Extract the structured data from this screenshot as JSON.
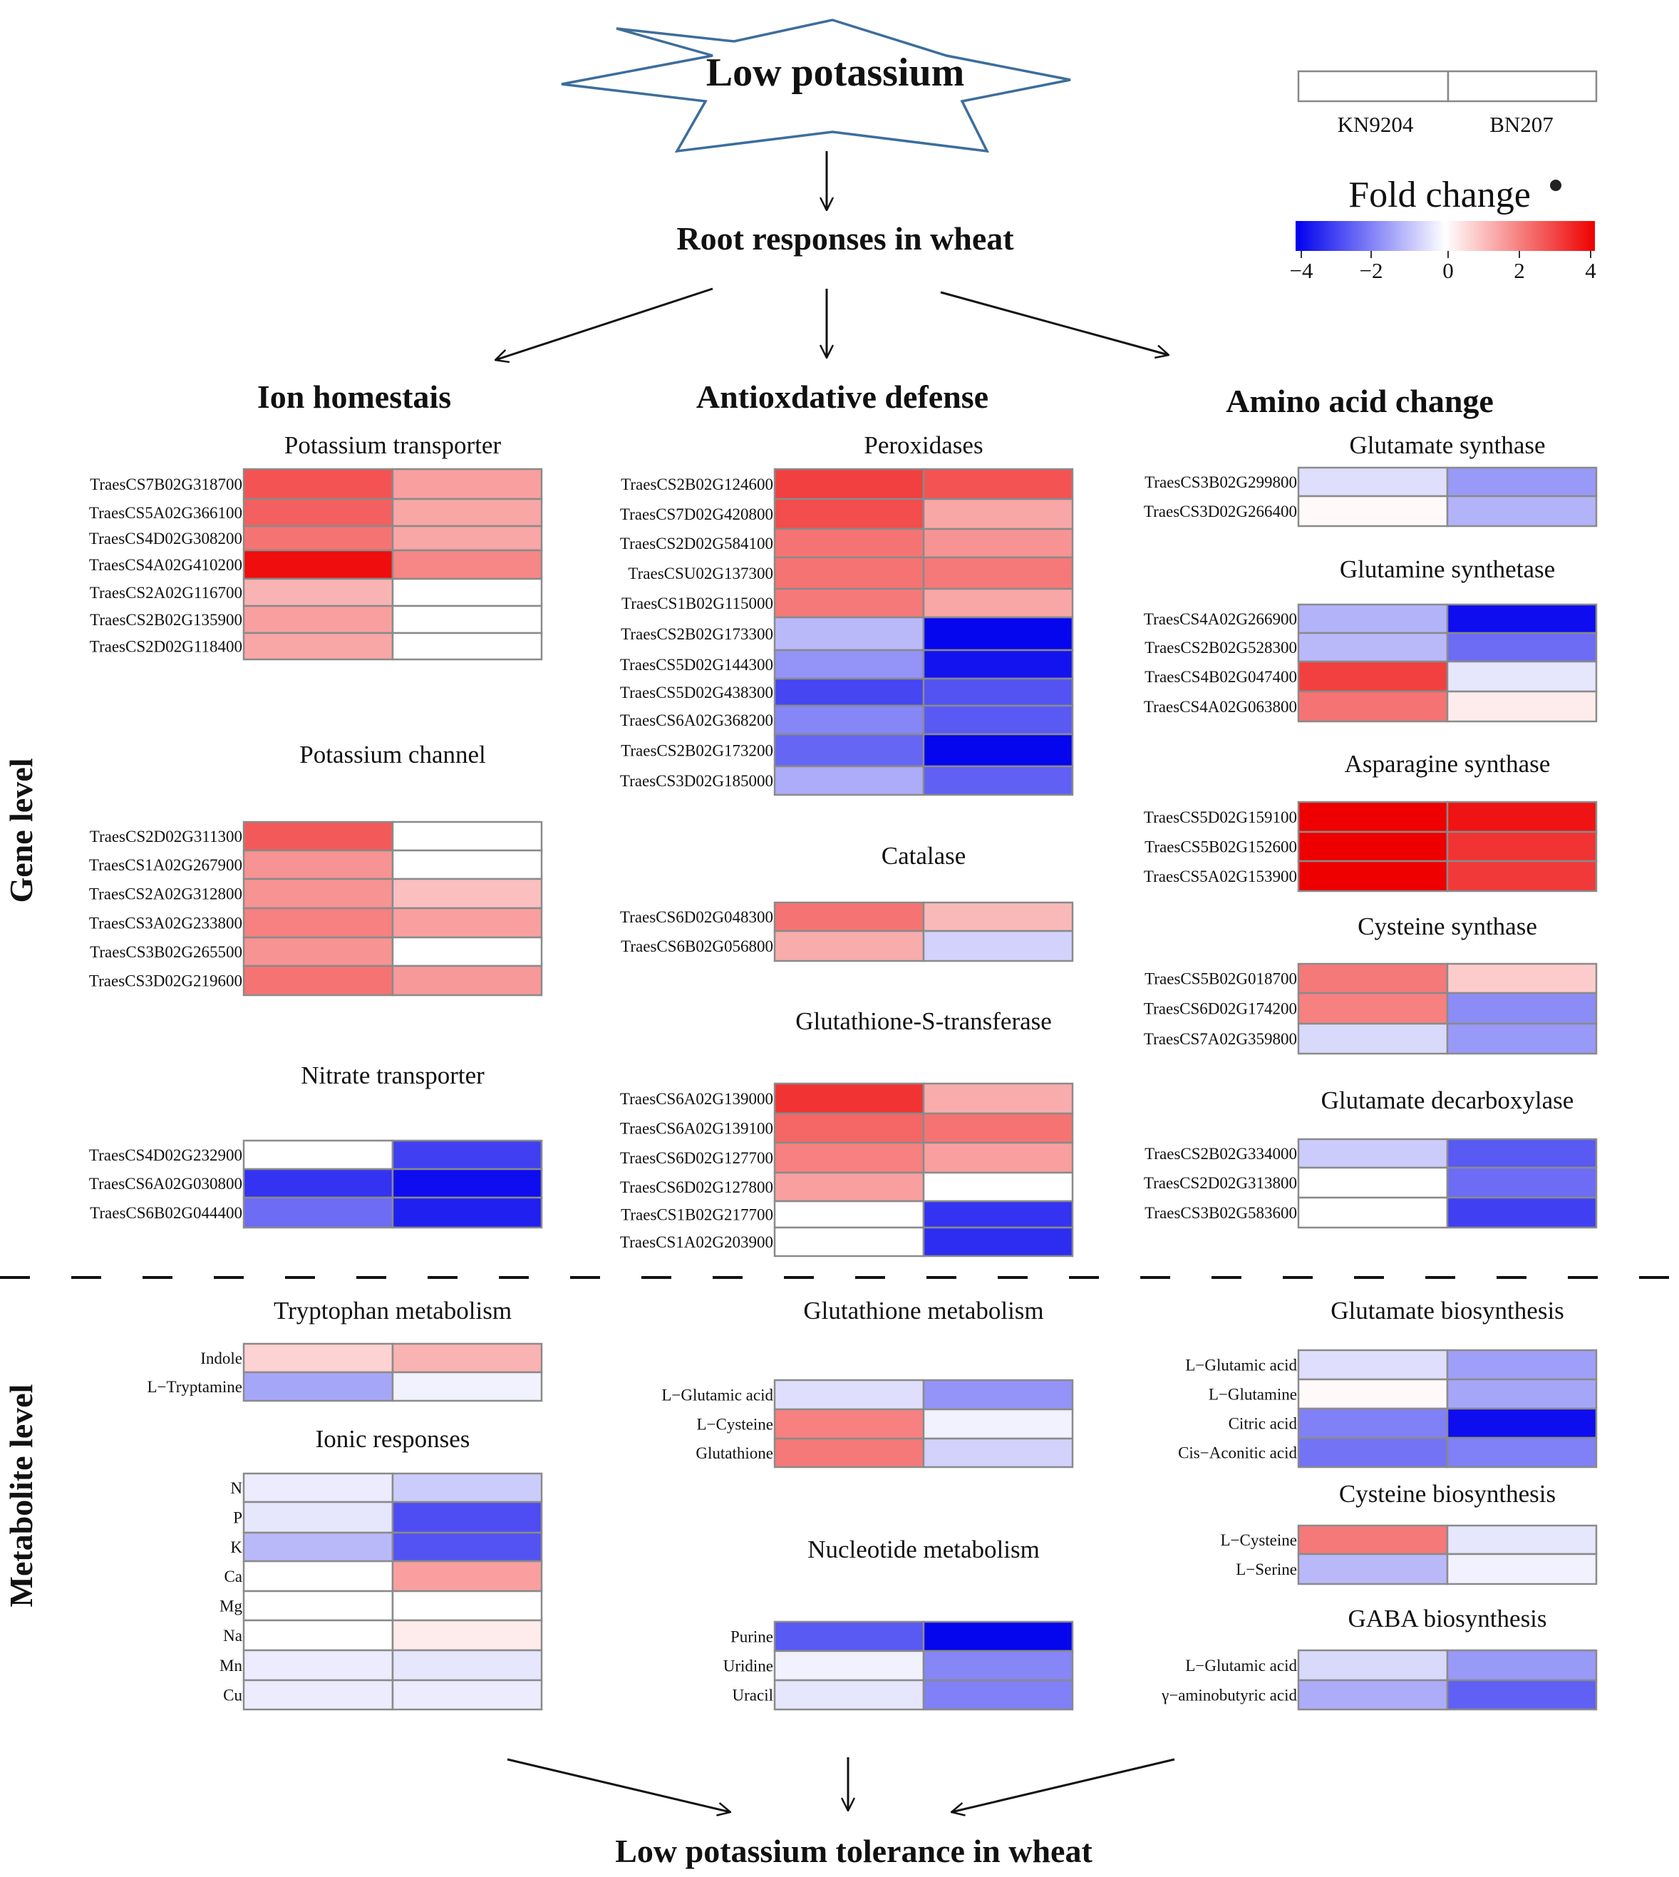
{
  "header": {
    "starburst_label": "Low potassium",
    "root_title": "Root responses in wheat",
    "bottom_title": "Low potassium tolerance in wheat"
  },
  "legend": {
    "col1": "KN9204",
    "col2": "BN207",
    "title": "Fold change",
    "ticks": [
      "−4",
      "−2",
      "0",
      "2",
      "4"
    ],
    "tick_values": [
      -4,
      -2,
      0,
      2,
      4
    ],
    "colors": {
      "low": "#0000ee",
      "mid": "#ffffff",
      "high": "#ee0000"
    }
  },
  "side_labels": {
    "gene": "Gene level",
    "metabolite": "Metabolite level"
  },
  "columns": {
    "ion": "Ion homestais",
    "antiox": "Antioxdative defense",
    "amino": "Amino acid change"
  },
  "panels": [
    {
      "id": "potassium-transporter",
      "title": "Potassium transporter",
      "rows": [
        {
          "label": "TraesCS7B02G318700",
          "values": [
            2.7,
            1.5
          ]
        },
        {
          "label": "TraesCS5A02G366100",
          "values": [
            2.5,
            1.4
          ]
        },
        {
          "label": "TraesCS4D02G308200",
          "values": [
            2.2,
            1.4
          ]
        },
        {
          "label": "TraesCS4A02G410200",
          "values": [
            3.8,
            1.9
          ]
        },
        {
          "label": "TraesCS2A02G116700",
          "values": [
            1.2,
            0.0
          ]
        },
        {
          "label": "TraesCS2B02G135900",
          "values": [
            1.5,
            0.0
          ]
        },
        {
          "label": "TraesCS2D02G118400",
          "values": [
            1.4,
            0.0
          ]
        }
      ]
    },
    {
      "id": "potassium-channel",
      "title": "Potassium channel",
      "rows": [
        {
          "label": "TraesCS2D02G311300",
          "values": [
            2.6,
            0.0
          ]
        },
        {
          "label": "TraesCS1A02G267900",
          "values": [
            1.7,
            0.0
          ]
        },
        {
          "label": "TraesCS2A02G312800",
          "values": [
            1.7,
            1.0
          ]
        },
        {
          "label": "TraesCS3A02G233800",
          "values": [
            2.0,
            1.5
          ]
        },
        {
          "label": "TraesCS3B02G265500",
          "values": [
            1.7,
            0.0
          ]
        },
        {
          "label": "TraesCS3D02G219600",
          "values": [
            2.2,
            1.6
          ]
        }
      ]
    },
    {
      "id": "nitrate-transporter",
      "title": "Nitrate transporter",
      "rows": [
        {
          "label": "TraesCS4D02G232900",
          "values": [
            0.0,
            -3.0
          ]
        },
        {
          "label": "TraesCS6A02G030800",
          "values": [
            -3.2,
            -3.8
          ]
        },
        {
          "label": "TraesCS6B02G044400",
          "values": [
            -2.3,
            -3.5
          ]
        }
      ]
    },
    {
      "id": "peroxidases",
      "title": "Peroxidases",
      "rows": [
        {
          "label": "TraesCS2B02G124600",
          "values": [
            3.0,
            2.7
          ]
        },
        {
          "label": "TraesCS7D02G420800",
          "values": [
            2.8,
            1.4
          ]
        },
        {
          "label": "TraesCS2D02G584100",
          "values": [
            2.2,
            1.7
          ]
        },
        {
          "label": "TraesCSU02G137300",
          "values": [
            2.2,
            2.1
          ]
        },
        {
          "label": "TraesCS1B02G115000",
          "values": [
            2.1,
            1.4
          ]
        },
        {
          "label": "TraesCS2B02G173300",
          "values": [
            -1.1,
            -3.9
          ]
        },
        {
          "label": "TraesCS5D02G144300",
          "values": [
            -1.7,
            -3.7
          ]
        },
        {
          "label": "TraesCS5D02G438300",
          "values": [
            -2.9,
            -2.7
          ]
        },
        {
          "label": "TraesCS6A02G368200",
          "values": [
            -1.9,
            -2.6
          ]
        },
        {
          "label": "TraesCS2B02G173200",
          "values": [
            -2.4,
            -3.9
          ]
        },
        {
          "label": "TraesCS3D02G185000",
          "values": [
            -1.3,
            -2.5
          ]
        }
      ]
    },
    {
      "id": "catalase",
      "title": "Catalase",
      "rows": [
        {
          "label": "TraesCS6D02G048300",
          "values": [
            2.2,
            1.1
          ]
        },
        {
          "label": "TraesCS6B02G056800",
          "values": [
            1.3,
            -0.7
          ]
        }
      ]
    },
    {
      "id": "glutathione-s-transferase",
      "title": "Glutathione-S-transferase",
      "rows": [
        {
          "label": "TraesCS6A02G139000",
          "values": [
            3.2,
            1.3
          ]
        },
        {
          "label": "TraesCS6A02G139100",
          "values": [
            2.4,
            2.2
          ]
        },
        {
          "label": "TraesCS6D02G127700",
          "values": [
            2.0,
            1.5
          ]
        },
        {
          "label": "TraesCS6D02G127800",
          "values": [
            1.5,
            0.0
          ]
        },
        {
          "label": "TraesCS1B02G217700",
          "values": [
            0.0,
            -3.2
          ]
        },
        {
          "label": "TraesCS1A02G203900",
          "values": [
            0.0,
            -3.3
          ]
        }
      ]
    },
    {
      "id": "glutamate-synthase",
      "title": "Glutamate synthase",
      "rows": [
        {
          "label": "TraesCS3B02G299800",
          "values": [
            -0.5,
            -1.6
          ]
        },
        {
          "label": "TraesCS3D02G266400",
          "values": [
            0.1,
            -1.2
          ]
        }
      ]
    },
    {
      "id": "glutamine-synthetase",
      "title": "Glutamine synthetase",
      "rows": [
        {
          "label": "TraesCS4A02G266900",
          "values": [
            -1.2,
            -3.8
          ]
        },
        {
          "label": "TraesCS2B02G528300",
          "values": [
            -1.1,
            -2.3
          ]
        },
        {
          "label": "TraesCS4B02G047400",
          "values": [
            3.0,
            -0.4
          ]
        },
        {
          "label": "TraesCS4A02G063800",
          "values": [
            2.2,
            0.3
          ]
        }
      ]
    },
    {
      "id": "asparagine-synthase",
      "title": "Asparagine synthase",
      "rows": [
        {
          "label": "TraesCS5D02G159100",
          "values": [
            4.0,
            3.7
          ]
        },
        {
          "label": "TraesCS5B02G152600",
          "values": [
            4.0,
            3.2
          ]
        },
        {
          "label": "TraesCS5A02G153900",
          "values": [
            4.0,
            3.1
          ]
        }
      ]
    },
    {
      "id": "cysteine-synthase",
      "title": "Cysteine synthase",
      "rows": [
        {
          "label": "TraesCS5B02G018700",
          "values": [
            2.1,
            0.8
          ]
        },
        {
          "label": "TraesCS6D02G174200",
          "values": [
            2.0,
            -1.8
          ]
        },
        {
          "label": "TraesCS7A02G359800",
          "values": [
            -0.6,
            -1.6
          ]
        }
      ]
    },
    {
      "id": "glutamate-decarboxylase",
      "title": "Glutamate decarboxylase",
      "rows": [
        {
          "label": "TraesCS2B02G334000",
          "values": [
            -0.8,
            -2.6
          ]
        },
        {
          "label": "TraesCS2D02G313800",
          "values": [
            0.0,
            -2.3
          ]
        },
        {
          "label": "TraesCS3B02G583600",
          "values": [
            0.0,
            -3.0
          ]
        }
      ]
    },
    {
      "id": "tryptophan-metabolism",
      "title": "Tryptophan metabolism",
      "rows": [
        {
          "label": "Indole",
          "values": [
            0.7,
            1.2
          ]
        },
        {
          "label": "L−Tryptamine",
          "values": [
            -1.4,
            -0.2
          ]
        }
      ]
    },
    {
      "id": "ionic-responses",
      "title": "Ionic responses",
      "rows": [
        {
          "label": "N",
          "values": [
            -0.3,
            -0.8
          ]
        },
        {
          "label": "P",
          "values": [
            -0.4,
            -2.8
          ]
        },
        {
          "label": "K",
          "values": [
            -1.1,
            -2.7
          ]
        },
        {
          "label": "Ca",
          "values": [
            0.0,
            1.5
          ]
        },
        {
          "label": "Mg",
          "values": [
            0.0,
            0.0
          ]
        },
        {
          "label": "Na",
          "values": [
            0.0,
            0.3
          ]
        },
        {
          "label": "Mn",
          "values": [
            -0.3,
            -0.4
          ]
        },
        {
          "label": "Cu",
          "values": [
            -0.3,
            -0.3
          ]
        }
      ]
    },
    {
      "id": "glutathione-metabolism",
      "title": "Glutathione metabolism",
      "rows": [
        {
          "label": "L−Glutamic acid",
          "values": [
            -0.5,
            -1.7
          ]
        },
        {
          "label": "L−Cysteine",
          "values": [
            2.0,
            -0.2
          ]
        },
        {
          "label": "Glutathione",
          "values": [
            2.1,
            -0.7
          ]
        }
      ]
    },
    {
      "id": "nucleotide-metabolism",
      "title": "Nucleotide metabolism",
      "rows": [
        {
          "label": "Purine",
          "values": [
            -2.6,
            -3.9
          ]
        },
        {
          "label": "Uridine",
          "values": [
            -0.2,
            -1.9
          ]
        },
        {
          "label": "Uracil",
          "values": [
            -0.4,
            -2.0
          ]
        }
      ]
    },
    {
      "id": "glutamate-biosynthesis",
      "title": "Glutamate biosynthesis",
      "rows": [
        {
          "label": "L−Glutamic acid",
          "values": [
            -0.5,
            -1.5
          ]
        },
        {
          "label": "L−Glutamine",
          "values": [
            0.1,
            -1.4
          ]
        },
        {
          "label": "Citric acid",
          "values": [
            -2.0,
            -3.8
          ]
        },
        {
          "label": "Cis−Aconitic acid",
          "values": [
            -2.2,
            -2.0
          ]
        }
      ]
    },
    {
      "id": "cysteine-biosynthesis",
      "title": "Cysteine biosynthesis",
      "rows": [
        {
          "label": "L−Cysteine",
          "values": [
            2.1,
            -0.4
          ]
        },
        {
          "label": "L−Serine",
          "values": [
            -1.1,
            -0.2
          ]
        }
      ]
    },
    {
      "id": "gaba-biosynthesis",
      "title": "GABA biosynthesis",
      "rows": [
        {
          "label": "L−Glutamic acid",
          "values": [
            -0.6,
            -1.6
          ]
        },
        {
          "label": "γ−aminobutyric acid",
          "values": [
            -1.3,
            -2.5
          ]
        }
      ]
    }
  ]
}
